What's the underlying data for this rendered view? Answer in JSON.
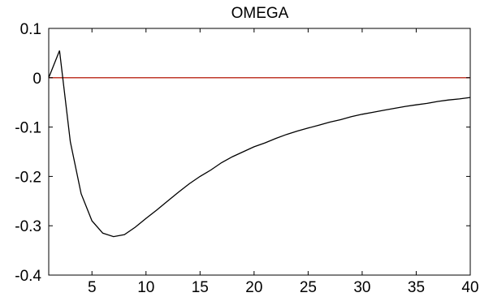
{
  "chart_data": {
    "type": "line",
    "title": "OMEGA",
    "xlabel": "",
    "ylabel": "",
    "xlim": [
      1,
      40
    ],
    "ylim": [
      -0.4,
      0.1
    ],
    "xticks": [
      5,
      10,
      15,
      20,
      25,
      30,
      35,
      40
    ],
    "yticks": [
      0.1,
      0,
      -0.1,
      -0.2,
      -0.3,
      -0.4
    ],
    "ytick_labels": [
      "0.1",
      "0",
      "-0.1",
      "-0.2",
      "-0.3",
      "-0.4"
    ],
    "grid": false,
    "reference_line": {
      "y": 0,
      "color": "#c0392b"
    },
    "series": [
      {
        "color": "#000000",
        "x": [
          1,
          2,
          3,
          4,
          5,
          6,
          7,
          8,
          9,
          10,
          11,
          12,
          13,
          14,
          15,
          16,
          17,
          18,
          19,
          20,
          21,
          22,
          23,
          24,
          25,
          26,
          27,
          28,
          29,
          30,
          31,
          32,
          33,
          34,
          35,
          36,
          37,
          38,
          39,
          40
        ],
        "values": [
          0.0,
          0.055,
          -0.13,
          -0.235,
          -0.29,
          -0.315,
          -0.322,
          -0.318,
          -0.303,
          -0.285,
          -0.268,
          -0.25,
          -0.232,
          -0.215,
          -0.2,
          -0.187,
          -0.172,
          -0.16,
          -0.15,
          -0.14,
          -0.132,
          -0.123,
          -0.115,
          -0.108,
          -0.102,
          -0.096,
          -0.09,
          -0.085,
          -0.079,
          -0.074,
          -0.07,
          -0.066,
          -0.062,
          -0.058,
          -0.055,
          -0.052,
          -0.048,
          -0.045,
          -0.043,
          -0.04
        ]
      }
    ]
  }
}
